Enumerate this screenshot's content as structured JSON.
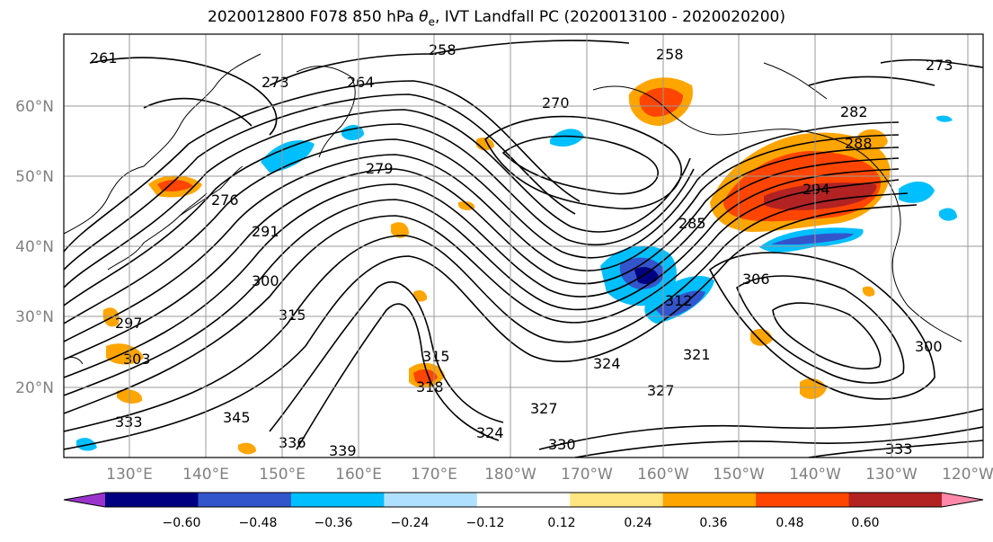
{
  "title": {
    "prefix": "2020012800 F078 850 hPa ",
    "symbol": "θ",
    "subscript": "e",
    "suffix": ", IVT Landfall PC (2020013100 - 2020020200)"
  },
  "map": {
    "lat_ticks": [
      "60°N",
      "50°N",
      "40°N",
      "30°N",
      "20°N"
    ],
    "lon_ticks": [
      "130°E",
      "140°E",
      "150°E",
      "160°E",
      "170°E",
      "180°W",
      "170°W",
      "160°W",
      "150°W",
      "140°W",
      "130°W",
      "120°W"
    ],
    "contour_labels": [
      "261",
      "258",
      "273",
      "264",
      "258",
      "273",
      "270",
      "282",
      "279",
      "276",
      "291",
      "285",
      "294",
      "288",
      "300",
      "315",
      "297",
      "303",
      "306",
      "312",
      "300",
      "324",
      "327",
      "318",
      "333",
      "336",
      "339",
      "324",
      "330",
      "327",
      "321",
      "345",
      "315",
      "333"
    ]
  },
  "colorbar": {
    "colors": [
      "#9933cc",
      "#000080",
      "#3355cc",
      "#00bfff",
      "#b0e0ff",
      "#ffffff",
      "#ffe680",
      "#ffa500",
      "#ff4500",
      "#b22222",
      "#ff88aa"
    ],
    "tick_labels": [
      "−0.60",
      "−0.48",
      "−0.36",
      "−0.24",
      "−0.12",
      "0.12",
      "0.24",
      "0.36",
      "0.48",
      "0.60"
    ]
  },
  "colors": {
    "positive_core": "#ff4500",
    "negative_core": "#3355cc",
    "contour": "#000000",
    "grid": "#999999",
    "tick_text": "#808080"
  }
}
